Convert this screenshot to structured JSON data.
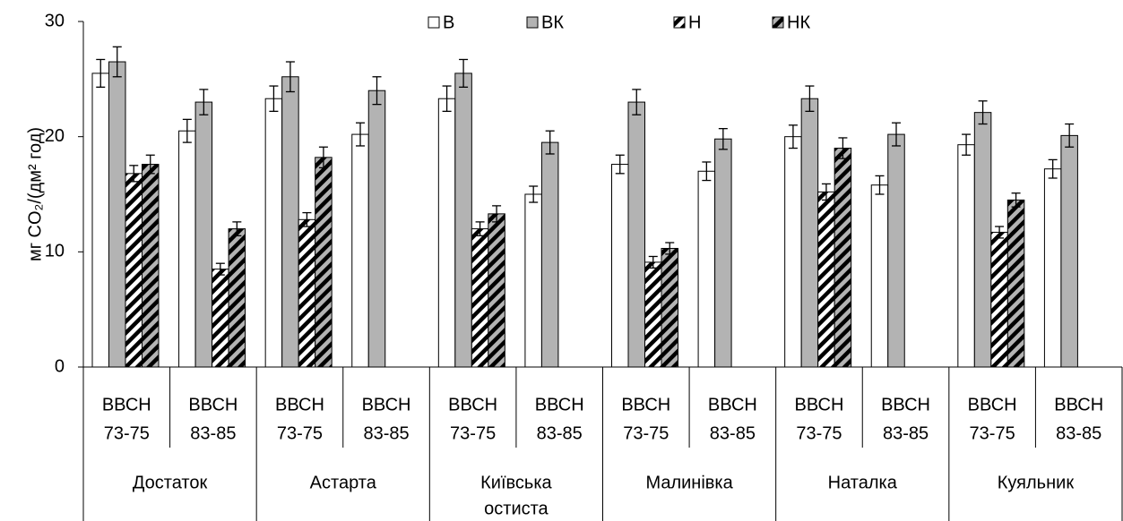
{
  "chart_data": {
    "type": "bar",
    "ylabel": "мг CO₂/(дм² год)",
    "ylim": [
      0,
      30
    ],
    "yticks": [
      0,
      10,
      20,
      30
    ],
    "legend": "top",
    "categories": [
      [
        "ВВСН",
        "73-75"
      ],
      [
        "ВВСН",
        "83-85"
      ],
      [
        "ВВСН",
        "73-75"
      ],
      [
        "ВВСН",
        "83-85"
      ],
      [
        "ВВСН",
        "73-75"
      ],
      [
        "ВВСН",
        "83-85"
      ],
      [
        "ВВСН",
        "73-75"
      ],
      [
        "ВВСН",
        "83-85"
      ],
      [
        "ВВСН",
        "73-75"
      ],
      [
        "ВВСН",
        "83-85"
      ],
      [
        "ВВСН",
        "73-75"
      ],
      [
        "ВВСН",
        "83-85"
      ]
    ],
    "groups": [
      [
        "Достаток"
      ],
      [
        "Астарта"
      ],
      [
        "Київська",
        "остиста"
      ],
      [
        "Малинівка"
      ],
      [
        "Наталка"
      ],
      [
        "Куяльник"
      ]
    ],
    "series": [
      {
        "name": "В",
        "color": "#ffffff",
        "hatch": false,
        "values": [
          25.5,
          20.5,
          23.3,
          20.2,
          23.3,
          15.0,
          17.6,
          17.0,
          20.0,
          15.8,
          19.3,
          17.2
        ],
        "errors": [
          1.2,
          1.0,
          1.1,
          1.0,
          1.1,
          0.7,
          0.8,
          0.8,
          1.0,
          0.8,
          0.9,
          0.8
        ]
      },
      {
        "name": "ВК",
        "color": "#b3b3b3",
        "hatch": false,
        "values": [
          26.5,
          23.0,
          25.2,
          24.0,
          25.5,
          19.5,
          23.0,
          19.8,
          23.3,
          20.2,
          22.1,
          20.1
        ],
        "errors": [
          1.3,
          1.1,
          1.3,
          1.2,
          1.2,
          1.0,
          1.1,
          0.9,
          1.1,
          1.0,
          1.0,
          1.0
        ]
      },
      {
        "name": "Н",
        "color": "#ffffff",
        "hatch": true,
        "values": [
          16.8,
          8.5,
          12.8,
          null,
          12.0,
          null,
          9.1,
          null,
          15.2,
          null,
          11.7,
          null
        ],
        "errors": [
          0.7,
          0.5,
          0.6,
          null,
          0.6,
          null,
          0.5,
          null,
          0.7,
          null,
          0.5,
          null
        ]
      },
      {
        "name": "НК",
        "color": "#b3b3b3",
        "hatch": true,
        "values": [
          17.6,
          12.0,
          18.2,
          null,
          13.3,
          null,
          10.3,
          null,
          19.0,
          null,
          14.5,
          null
        ],
        "errors": [
          0.8,
          0.6,
          0.9,
          null,
          0.7,
          null,
          0.5,
          null,
          0.9,
          null,
          0.6,
          null
        ]
      }
    ]
  }
}
